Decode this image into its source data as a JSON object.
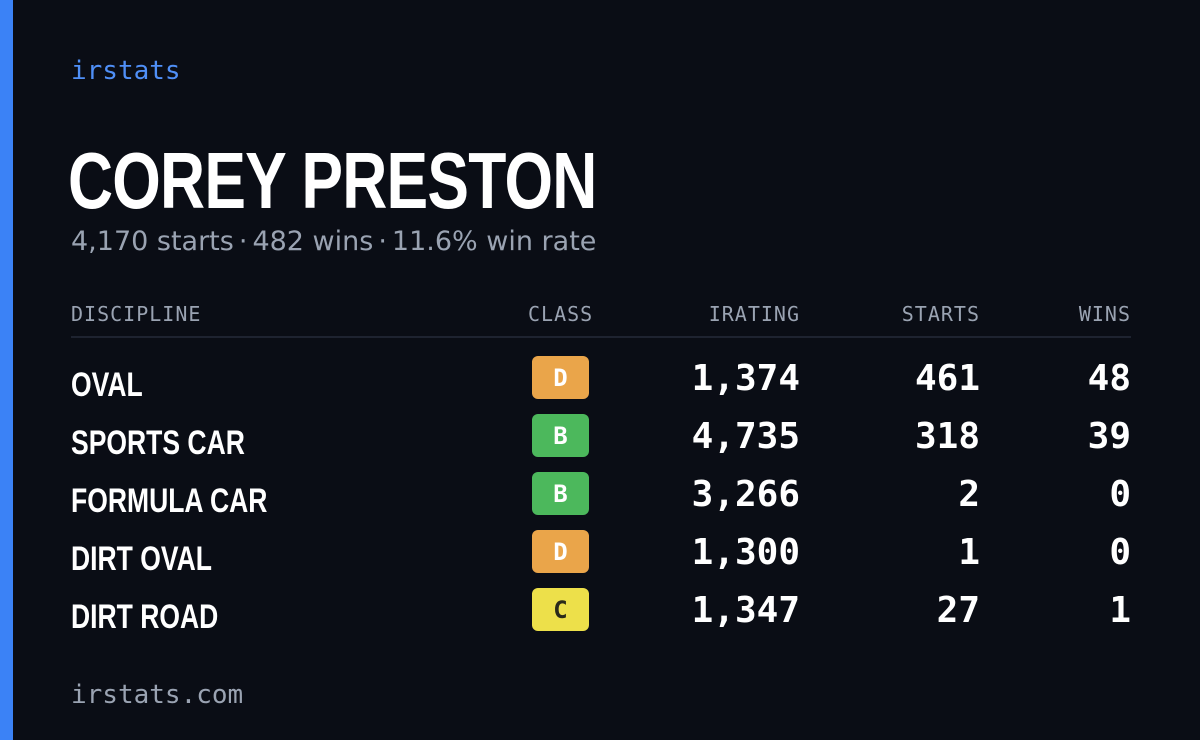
{
  "brand": "irstats",
  "driver": {
    "name": "COREY PRESTON",
    "starts_text": "4,170 starts",
    "wins_text": "482 wins",
    "win_rate_text": "11.6% win rate",
    "separator": "·"
  },
  "table": {
    "headers": {
      "discipline": "DISCIPLINE",
      "class": "CLASS",
      "irating": "IRATING",
      "starts": "STARTS",
      "wins": "WINS"
    },
    "rows": [
      {
        "discipline": "OVAL",
        "class": "D",
        "class_color": "#eaa54a",
        "class_text_color": "#ffffff",
        "irating": "1,374",
        "starts": "461",
        "wins": "48"
      },
      {
        "discipline": "SPORTS CAR",
        "class": "B",
        "class_color": "#4cb85c",
        "class_text_color": "#ffffff",
        "irating": "4,735",
        "starts": "318",
        "wins": "39"
      },
      {
        "discipline": "FORMULA CAR",
        "class": "B",
        "class_color": "#4cb85c",
        "class_text_color": "#ffffff",
        "irating": "3,266",
        "starts": "2",
        "wins": "0"
      },
      {
        "discipline": "DIRT OVAL",
        "class": "D",
        "class_color": "#eaa54a",
        "class_text_color": "#ffffff",
        "irating": "1,300",
        "starts": "1",
        "wins": "0"
      },
      {
        "discipline": "DIRT ROAD",
        "class": "C",
        "class_color": "#ede04a",
        "class_text_color": "#2a2a1a",
        "irating": "1,347",
        "starts": "27",
        "wins": "1"
      }
    ]
  },
  "footer": "irstats.com",
  "colors": {
    "background": "#0a0d15",
    "accent": "#3b82f6",
    "brand": "#4f8ff7",
    "muted": "#9aa3b2"
  }
}
